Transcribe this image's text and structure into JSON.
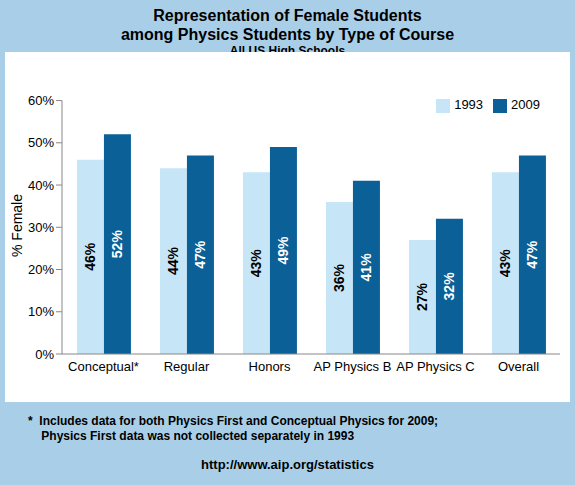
{
  "chart_data": {
    "type": "bar",
    "title": "Representation of Female Students\namong Physics Students by Type of Course",
    "subtitle": "All US High Schools",
    "y_label": "% Female",
    "categories": [
      "Conceptual*",
      "Regular",
      "Honors",
      "AP Physics B",
      "AP Physics C",
      "Overall"
    ],
    "series": [
      {
        "name": "1993",
        "color": "#c6e6f8",
        "values": [
          46,
          44,
          43,
          36,
          27,
          43
        ],
        "value_labels": [
          "46%",
          "44%",
          "43%",
          "36%",
          "27%",
          "43%"
        ]
      },
      {
        "name": "2009",
        "color": "#0b6097",
        "values": [
          52,
          47,
          49,
          41,
          32,
          47
        ],
        "value_labels": [
          "52%",
          "47%",
          "49%",
          "41%",
          "32%",
          "47%"
        ]
      }
    ],
    "ylim": [
      0,
      60
    ],
    "yticks": [
      {
        "value": 0,
        "label": "0%"
      },
      {
        "value": 10,
        "label": "10%"
      },
      {
        "value": 20,
        "label": "20%"
      },
      {
        "value": 30,
        "label": "30%"
      },
      {
        "value": 40,
        "label": "40%"
      },
      {
        "value": 50,
        "label": "50%"
      },
      {
        "value": 60,
        "label": "60%"
      }
    ],
    "grid": false,
    "legend": "upper right",
    "data_labels": true,
    "annotations": [
      "*  Includes data for both Physics First and Conceptual Physics for 2009;\n    Physics First data was not collected separately in 1993",
      "http://www.aip.org/statistics"
    ]
  }
}
